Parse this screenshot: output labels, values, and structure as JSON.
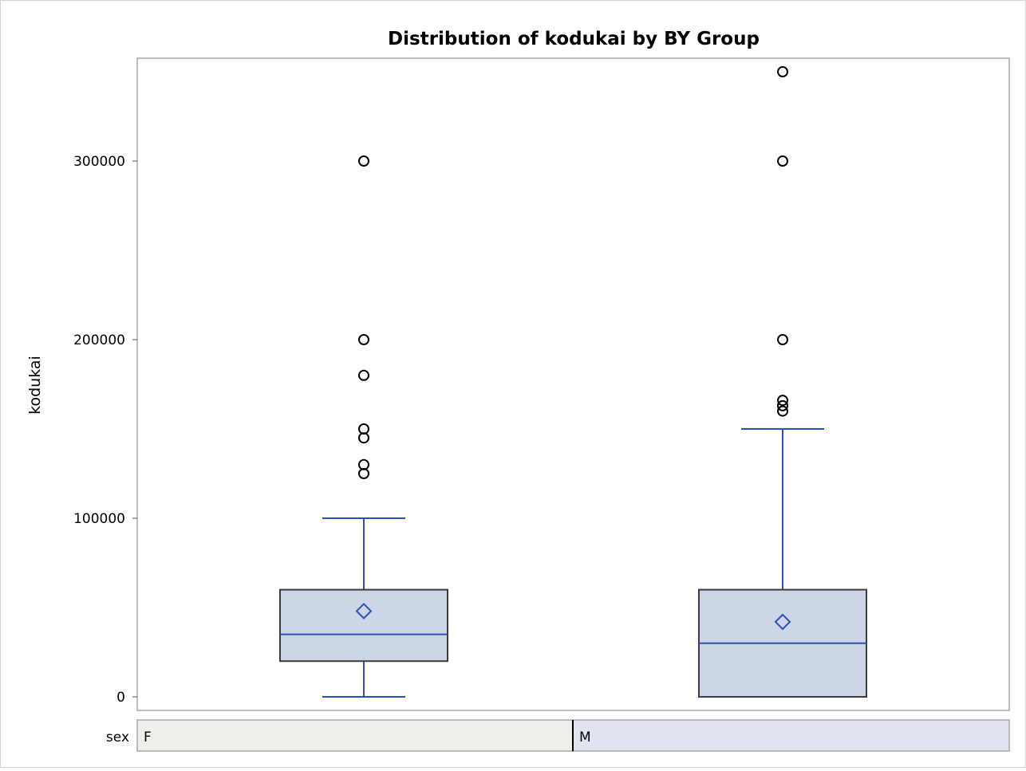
{
  "chart_data": {
    "type": "box",
    "title": "Distribution of kodukai by BY Group",
    "ylabel": "kodukai",
    "ylim": [
      -5000,
      355000
    ],
    "yticks": [
      0,
      100000,
      200000,
      300000
    ],
    "ytick_labels": [
      "0",
      "100000",
      "200000",
      "300000"
    ],
    "grid": false,
    "by_variable": "sex",
    "groups": [
      {
        "label": "F",
        "whisker_low": 0,
        "q1": 20000,
        "median": 35000,
        "q3": 60000,
        "whisker_high": 100000,
        "mean": 48000,
        "outliers": [
          125000,
          130000,
          145000,
          150000,
          180000,
          200000,
          300000
        ]
      },
      {
        "label": "M",
        "whisker_low": 0,
        "q1": 0,
        "median": 30000,
        "q3": 60000,
        "whisker_high": 150000,
        "mean": 42000,
        "outliers": [
          160000,
          163000,
          166000,
          200000,
          300000,
          350000
        ]
      }
    ],
    "colors": {
      "box_fill": "#cdd6e6",
      "box_stroke": "#3c3c3c",
      "whisker": "#2c50b8",
      "median": "#2c50b8",
      "mean_marker": "#2c50b8",
      "outlier": "#000000",
      "frame": "#a8a8a8",
      "cell_F": "#f0f0eb",
      "cell_M": "#dfe4ef"
    }
  }
}
